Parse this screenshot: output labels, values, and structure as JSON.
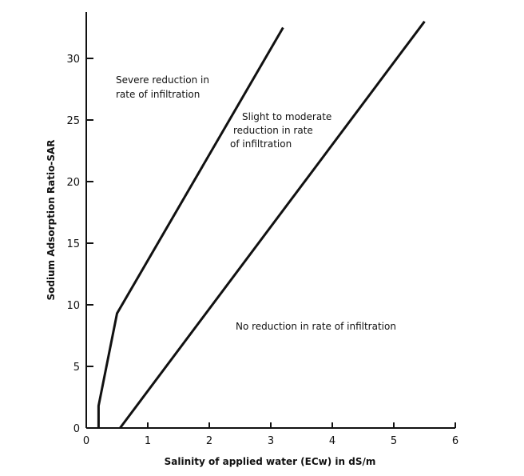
{
  "chart_data": {
    "type": "line",
    "xlabel": "Salinity of applied water (ECw) in dS/m",
    "ylabel": "Sodium Adsorption Ratio-SAR",
    "xlim": [
      0,
      6
    ],
    "ylim": [
      0,
      33
    ],
    "x_ticks": [
      0,
      1,
      2,
      3,
      4,
      5,
      6
    ],
    "y_ticks": [
      0,
      5,
      10,
      15,
      20,
      25,
      30
    ],
    "grid": false,
    "series": [
      {
        "x": [
          0.2,
          0.2,
          0.5,
          3.2
        ],
        "y": [
          0,
          1.8,
          9.3,
          32.5
        ]
      },
      {
        "x": [
          0.55,
          5.5
        ],
        "y": [
          0,
          33
        ]
      }
    ],
    "annotations": [
      {
        "lines": [
          "Severe reduction in",
          "rate of infiltration"
        ]
      },
      {
        "lines": [
          "Slight to moderate",
          "reduction in rate",
          "of infiltration"
        ]
      },
      {
        "lines": [
          "No reduction in rate of infiltration"
        ]
      }
    ]
  }
}
